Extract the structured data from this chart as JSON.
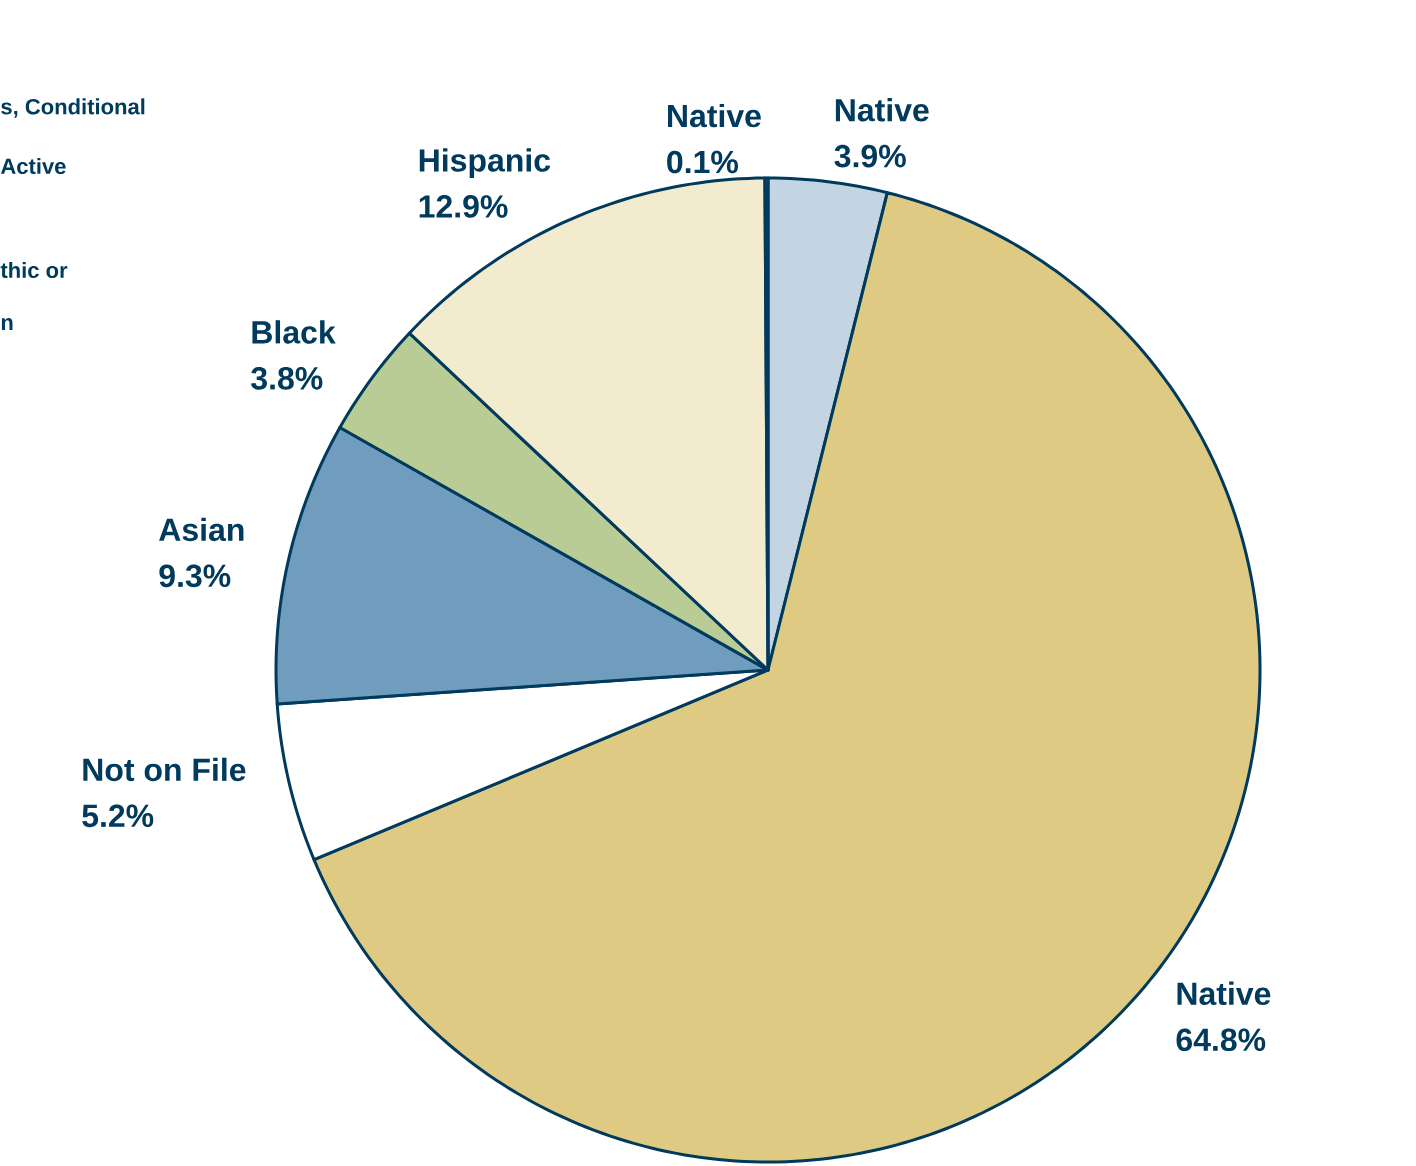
{
  "chart_data": {
    "type": "pie",
    "categories": [
      "Native",
      "Native",
      "Not on File",
      "Asian",
      "Black",
      "Hispanic",
      "Native"
    ],
    "values": [
      3.9,
      64.8,
      5.2,
      9.3,
      3.8,
      12.9,
      0.1
    ],
    "value_labels": [
      "3.9%",
      "64.8%",
      "5.2%",
      "9.3%",
      "3.8%",
      "12.9%",
      "0.1%"
    ],
    "colors": [
      "#c3d4e3",
      "#dfca84",
      "#ffffff",
      "#709dbd",
      "#b9cc95",
      "#f3ebcd",
      "#dfe8f0"
    ],
    "annotations": [
      "s, Conditional",
      "Active",
      "thic or",
      "n"
    ]
  }
}
